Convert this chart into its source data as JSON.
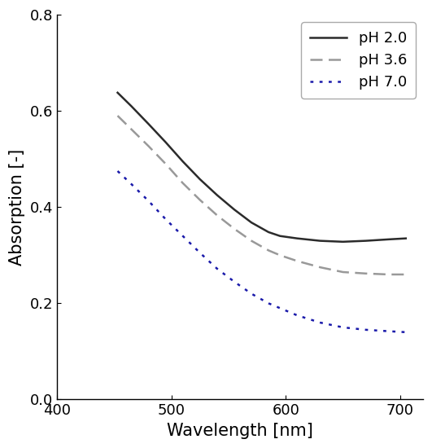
{
  "xlabel": "Wavelength [nm]",
  "ylabel": "Absorption [-]",
  "xlim": [
    400,
    720
  ],
  "ylim": [
    0.0,
    0.8
  ],
  "xticks": [
    400,
    500,
    600,
    700
  ],
  "yticks": [
    0.0,
    0.2,
    0.4,
    0.6,
    0.8
  ],
  "ph2_x": [
    453,
    465,
    480,
    495,
    510,
    525,
    540,
    555,
    570,
    585,
    595,
    610,
    630,
    650,
    670,
    690,
    705
  ],
  "ph2_y": [
    0.638,
    0.61,
    0.573,
    0.535,
    0.495,
    0.458,
    0.425,
    0.395,
    0.368,
    0.348,
    0.34,
    0.335,
    0.33,
    0.328,
    0.33,
    0.333,
    0.335
  ],
  "ph36_x": [
    453,
    465,
    480,
    495,
    510,
    525,
    540,
    555,
    570,
    585,
    595,
    610,
    630,
    650,
    670,
    690,
    705
  ],
  "ph36_y": [
    0.59,
    0.562,
    0.527,
    0.49,
    0.45,
    0.415,
    0.383,
    0.355,
    0.33,
    0.31,
    0.3,
    0.288,
    0.275,
    0.265,
    0.262,
    0.26,
    0.26
  ],
  "ph70_x": [
    453,
    465,
    480,
    495,
    510,
    525,
    540,
    555,
    570,
    585,
    595,
    610,
    630,
    650,
    670,
    690,
    705
  ],
  "ph70_y": [
    0.475,
    0.448,
    0.413,
    0.375,
    0.34,
    0.305,
    0.272,
    0.245,
    0.22,
    0.2,
    0.19,
    0.175,
    0.16,
    0.15,
    0.145,
    0.142,
    0.14
  ],
  "ph2_color": "#2b2b2b",
  "ph36_color": "#999999",
  "ph70_color": "#1a1aaa",
  "ph2_linewidth": 1.8,
  "ph36_linewidth": 1.8,
  "ph70_linewidth": 1.8,
  "legend_labels": [
    "pH 2.0",
    "pH 3.6",
    "pH 7.0"
  ],
  "legend_colors": [
    "#2b2b2b",
    "#999999",
    "#1a1aaa"
  ],
  "background_color": "#ffffff",
  "font_size": 15,
  "legend_font_size": 13,
  "tick_font_size": 13
}
